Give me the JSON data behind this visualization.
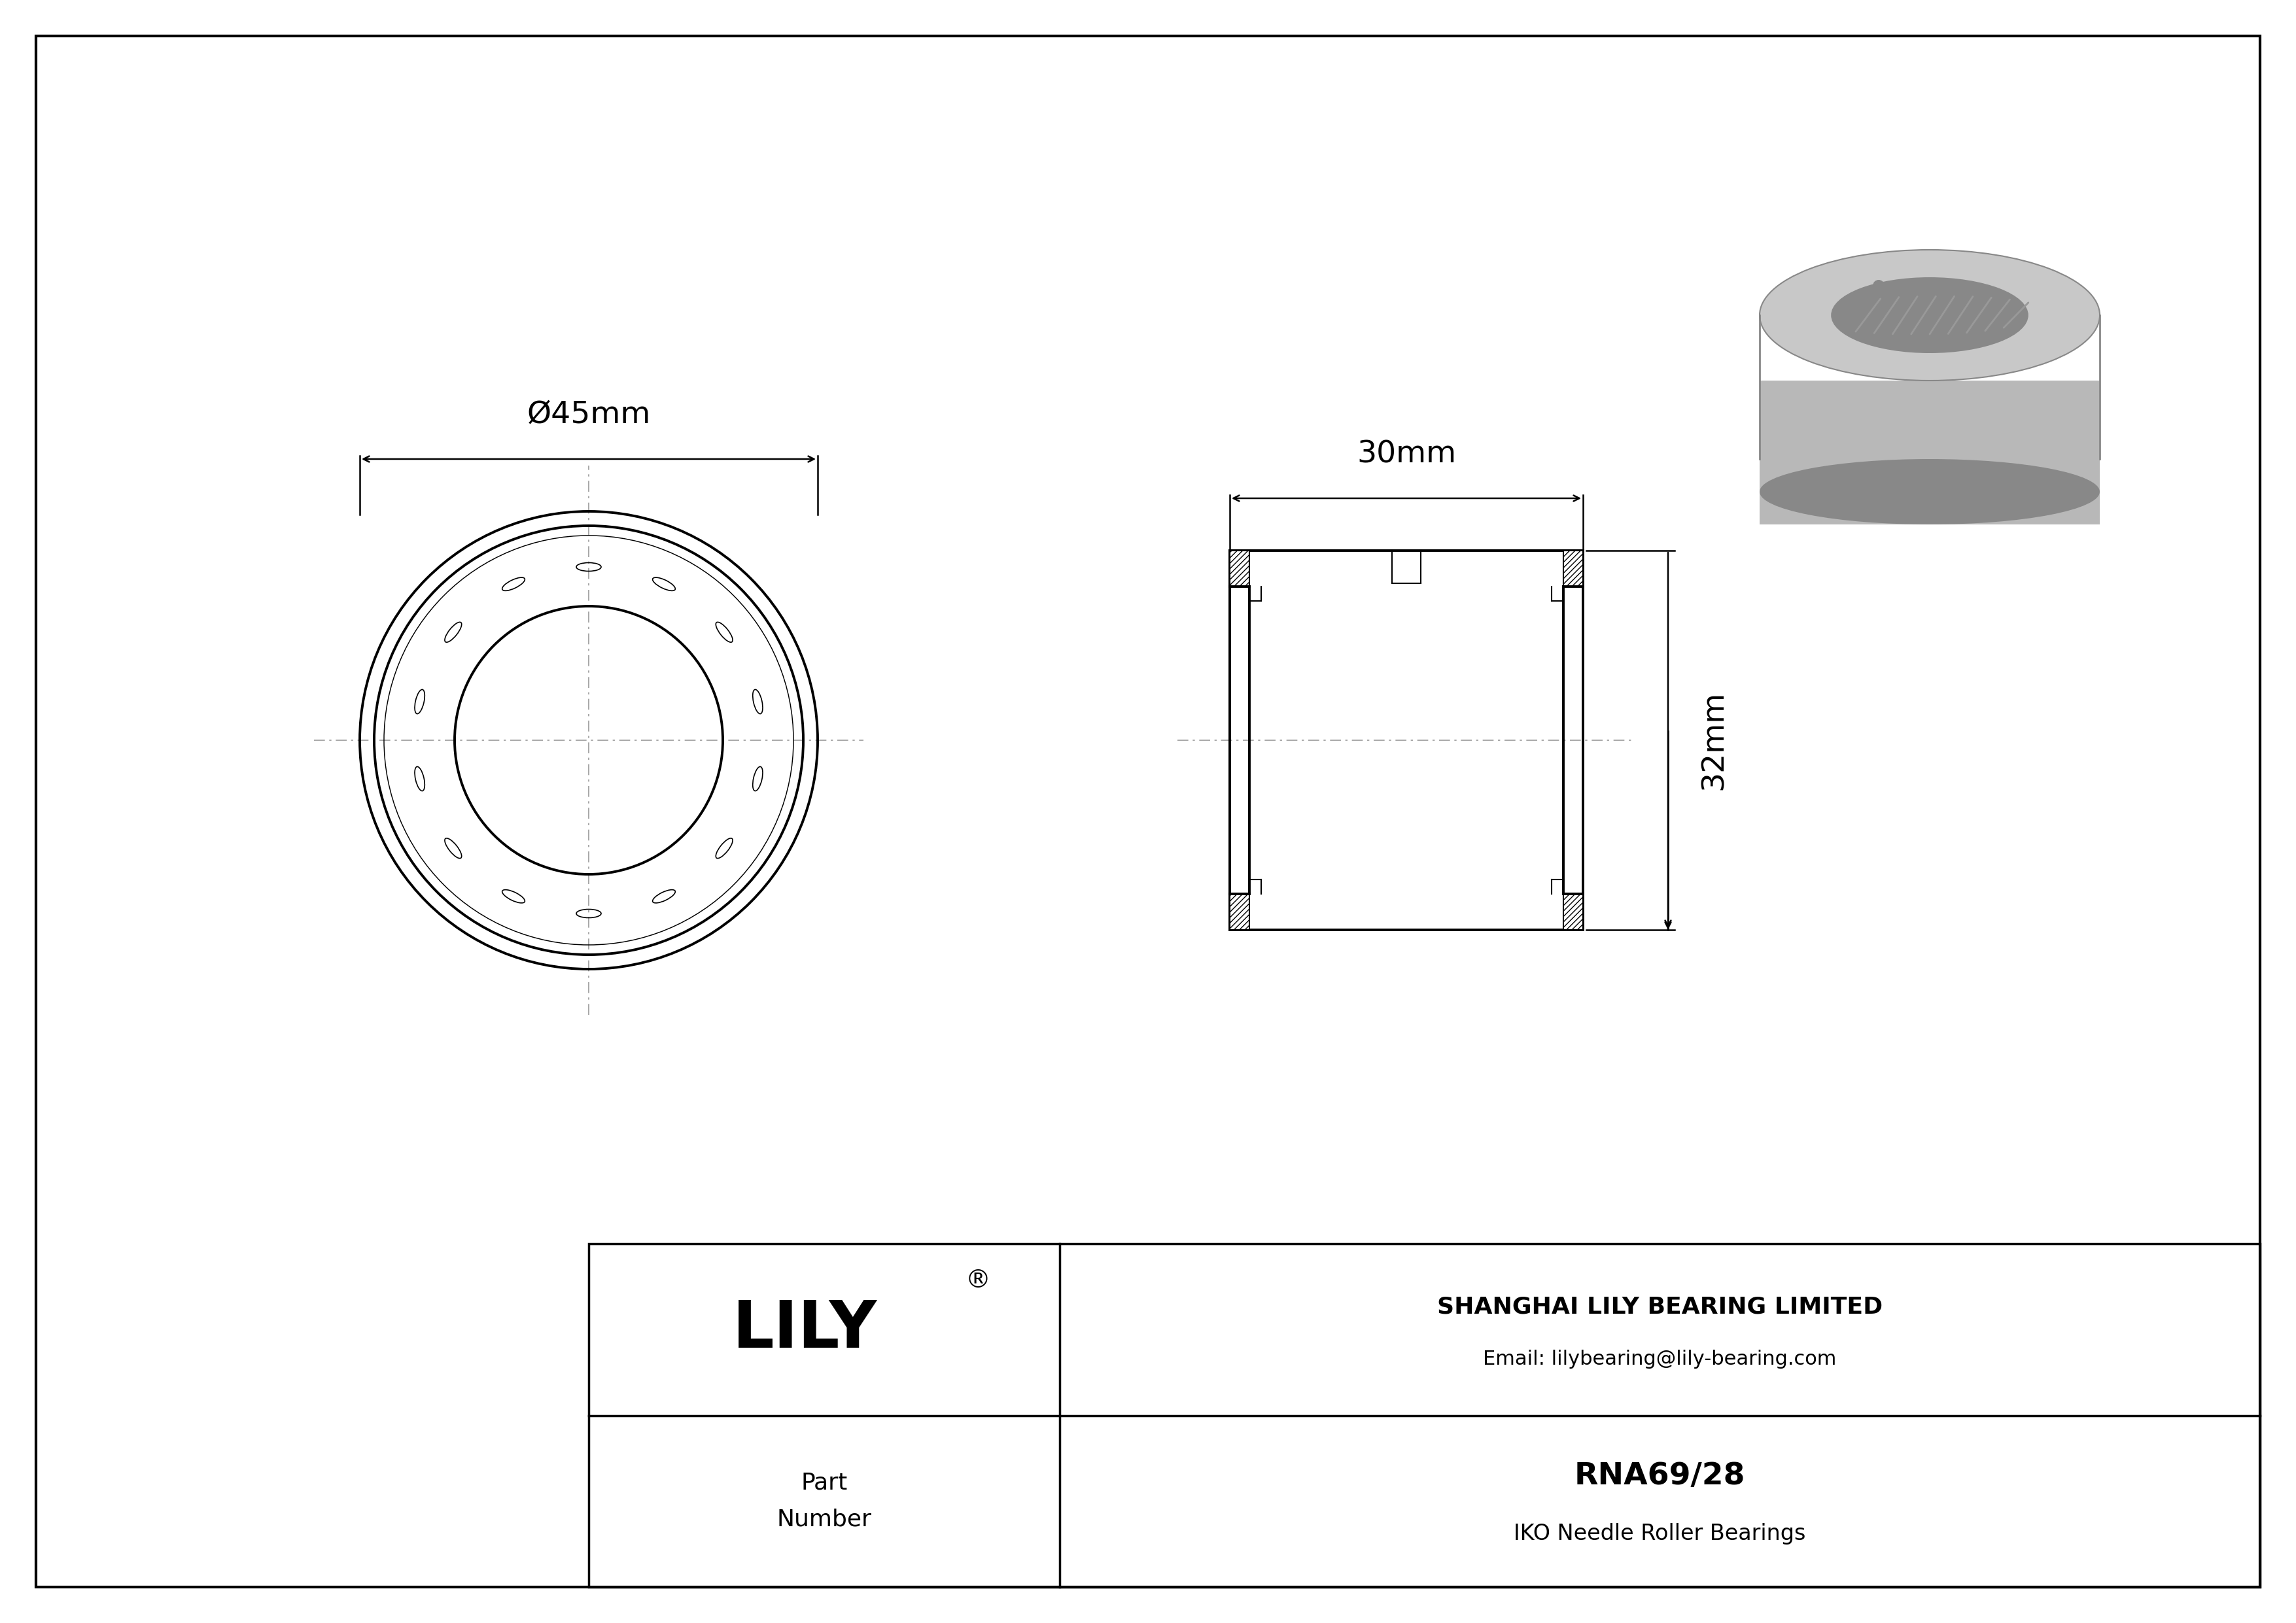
{
  "bg_color": "#ffffff",
  "line_color": "#000000",
  "center_line_color": "#999999",
  "title_company": "SHANGHAI LILY BEARING LIMITED",
  "title_email": "Email: lilybearing@lily-bearing.com",
  "part_label": "Part\nNumber",
  "part_number": "RNA69/28",
  "part_type": "IKO Needle Roller Bearings",
  "logo_text": "LILY",
  "logo_registered": "®",
  "dim_diameter": "Ø45mm",
  "dim_width": "30mm",
  "dim_height": "32mm",
  "num_rollers": 14,
  "gray_3d": "#adadad",
  "gray_3d_dark": "#888888",
  "gray_3d_light": "#c8c8c8",
  "gray_3d_mid": "#b8b8b8"
}
